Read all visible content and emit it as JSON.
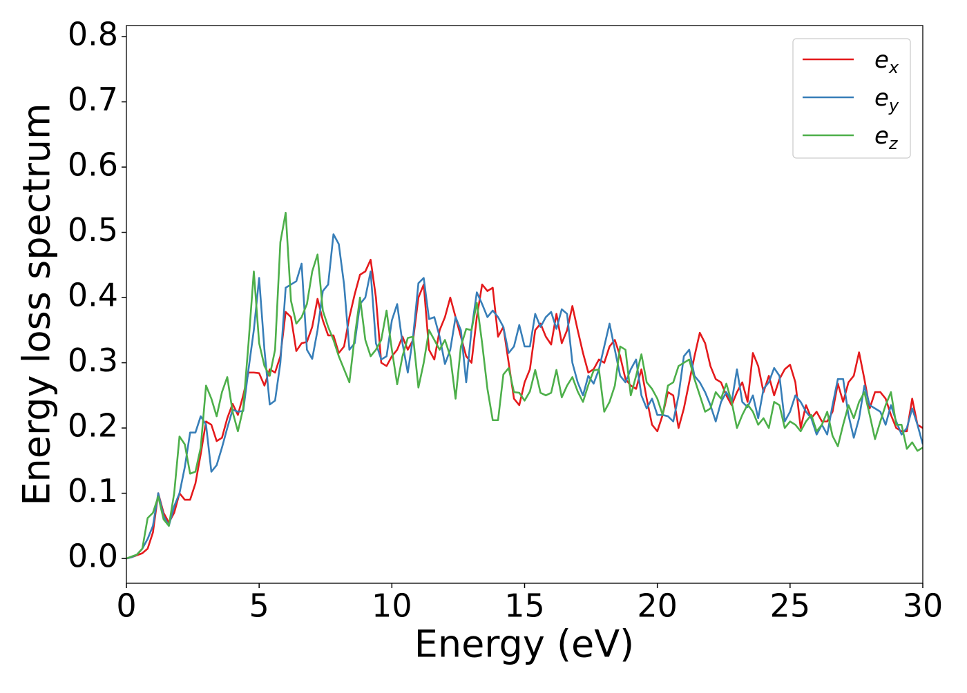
{
  "chart_data": {
    "type": "line",
    "xlabel": "Energy (eV)",
    "ylabel": "Energy loss spectrum",
    "xlim": [
      0,
      30
    ],
    "ylim": [
      -0.038,
      0.817
    ],
    "xticks": [
      0,
      5,
      10,
      15,
      20,
      25,
      30
    ],
    "yticks": [
      {
        "value": 0,
        "label": "0.0"
      },
      0.1,
      0.2,
      0.3,
      0.4,
      0.5,
      0.6,
      0.7,
      0.8
    ],
    "legend": "upper right",
    "x": [
      0,
      0.2,
      0.4,
      0.6,
      0.8,
      1.0,
      1.2,
      1.4,
      1.6,
      1.8,
      2.0,
      2.2,
      2.4,
      2.6,
      2.8,
      3.0,
      3.2,
      3.4,
      3.6,
      3.8,
      4.0,
      4.2,
      4.4,
      4.6,
      4.8,
      5.0,
      5.2,
      5.4,
      5.6,
      5.8,
      6.0,
      6.2,
      6.4,
      6.6,
      6.8,
      7.0,
      7.2,
      7.4,
      7.6,
      7.8,
      8.0,
      8.2,
      8.4,
      8.6,
      8.8,
      9.0,
      9.2,
      9.4,
      9.6,
      9.8,
      10.0,
      10.2,
      10.4,
      10.6,
      10.8,
      11.0,
      11.2,
      11.4,
      11.6,
      11.8,
      12.0,
      12.2,
      12.4,
      12.6,
      12.8,
      13.0,
      13.2,
      13.4,
      13.6,
      13.8,
      14.0,
      14.2,
      14.4,
      14.6,
      14.8,
      15.0,
      15.2,
      15.4,
      15.6,
      15.8,
      16.0,
      16.2,
      16.4,
      16.6,
      16.8,
      17.0,
      17.2,
      17.4,
      17.6,
      17.8,
      18.0,
      18.2,
      18.4,
      18.6,
      18.8,
      19.0,
      19.2,
      19.4,
      19.6,
      19.8,
      20.0,
      20.2,
      20.4,
      20.6,
      20.8,
      21.0,
      21.2,
      21.4,
      21.6,
      21.8,
      22.0,
      22.2,
      22.4,
      22.6,
      22.8,
      23.0,
      23.2,
      23.4,
      23.6,
      23.8,
      24.0,
      24.2,
      24.4,
      24.6,
      24.8,
      25.0,
      25.2,
      25.4,
      25.6,
      25.8,
      26.0,
      26.2,
      26.4,
      26.6,
      26.8,
      27.0,
      27.2,
      27.4,
      27.6,
      27.8,
      28.0,
      28.2,
      28.4,
      28.6,
      28.8,
      29.0,
      29.2,
      29.4,
      29.6,
      29.8,
      30.0
    ],
    "series": [
      {
        "name": "ex",
        "color": "#e41a1c",
        "values": [
          0,
          0.002,
          0.005,
          0.008,
          0.015,
          0.04,
          0.1,
          0.07,
          0.055,
          0.07,
          0.1,
          0.09,
          0.09,
          0.115,
          0.16,
          0.21,
          0.205,
          0.18,
          0.185,
          0.215,
          0.237,
          0.22,
          0.25,
          0.285,
          0.285,
          0.284,
          0.265,
          0.29,
          0.285,
          0.31,
          0.378,
          0.37,
          0.318,
          0.33,
          0.332,
          0.355,
          0.398,
          0.365,
          0.342,
          0.342,
          0.315,
          0.325,
          0.37,
          0.405,
          0.435,
          0.44,
          0.458,
          0.4,
          0.3,
          0.295,
          0.31,
          0.32,
          0.34,
          0.32,
          0.335,
          0.4,
          0.42,
          0.32,
          0.305,
          0.35,
          0.37,
          0.4,
          0.37,
          0.34,
          0.31,
          0.3,
          0.37,
          0.42,
          0.41,
          0.415,
          0.34,
          0.355,
          0.3,
          0.245,
          0.235,
          0.27,
          0.29,
          0.35,
          0.36,
          0.34,
          0.328,
          0.375,
          0.33,
          0.35,
          0.387,
          0.35,
          0.315,
          0.285,
          0.29,
          0.305,
          0.3,
          0.325,
          0.335,
          0.31,
          0.275,
          0.265,
          0.26,
          0.29,
          0.245,
          0.205,
          0.195,
          0.22,
          0.255,
          0.25,
          0.2,
          0.23,
          0.27,
          0.31,
          0.346,
          0.33,
          0.295,
          0.275,
          0.27,
          0.25,
          0.235,
          0.255,
          0.27,
          0.24,
          0.315,
          0.295,
          0.255,
          0.28,
          0.25,
          0.275,
          0.29,
          0.297,
          0.27,
          0.2,
          0.235,
          0.215,
          0.225,
          0.21,
          0.21,
          0.225,
          0.268,
          0.24,
          0.27,
          0.28,
          0.316,
          0.275,
          0.23,
          0.255,
          0.255,
          0.245,
          0.22,
          0.2,
          0.195,
          0.195,
          0.245,
          0.205,
          0.2
        ]
      },
      {
        "name": "ey",
        "color": "#377eb8",
        "values": [
          0,
          0.002,
          0.006,
          0.015,
          0.03,
          0.05,
          0.1,
          0.065,
          0.05,
          0.08,
          0.1,
          0.14,
          0.193,
          0.193,
          0.218,
          0.205,
          0.133,
          0.143,
          0.17,
          0.2,
          0.228,
          0.225,
          0.226,
          0.29,
          0.35,
          0.43,
          0.32,
          0.236,
          0.242,
          0.3,
          0.415,
          0.42,
          0.425,
          0.452,
          0.32,
          0.306,
          0.35,
          0.41,
          0.42,
          0.497,
          0.482,
          0.42,
          0.32,
          0.33,
          0.39,
          0.4,
          0.44,
          0.33,
          0.305,
          0.31,
          0.365,
          0.39,
          0.33,
          0.285,
          0.34,
          0.422,
          0.43,
          0.367,
          0.37,
          0.34,
          0.298,
          0.32,
          0.37,
          0.35,
          0.27,
          0.35,
          0.408,
          0.39,
          0.37,
          0.38,
          0.37,
          0.355,
          0.315,
          0.325,
          0.358,
          0.325,
          0.325,
          0.375,
          0.355,
          0.37,
          0.378,
          0.352,
          0.382,
          0.375,
          0.3,
          0.27,
          0.25,
          0.28,
          0.268,
          0.29,
          0.325,
          0.36,
          0.32,
          0.28,
          0.27,
          0.29,
          0.305,
          0.25,
          0.23,
          0.245,
          0.22,
          0.22,
          0.218,
          0.21,
          0.25,
          0.31,
          0.32,
          0.28,
          0.27,
          0.255,
          0.235,
          0.21,
          0.24,
          0.255,
          0.24,
          0.29,
          0.24,
          0.232,
          0.25,
          0.215,
          0.26,
          0.27,
          0.292,
          0.28,
          0.21,
          0.225,
          0.25,
          0.24,
          0.225,
          0.215,
          0.19,
          0.205,
          0.19,
          0.235,
          0.275,
          0.275,
          0.22,
          0.185,
          0.215,
          0.265,
          0.235,
          0.23,
          0.225,
          0.205,
          0.235,
          0.21,
          0.19,
          0.2,
          0.23,
          0.205,
          0.175
        ]
      },
      {
        "name": "ez",
        "color": "#4daf4a",
        "values": [
          0,
          0.003,
          0.006,
          0.015,
          0.062,
          0.07,
          0.095,
          0.06,
          0.05,
          0.1,
          0.187,
          0.175,
          0.13,
          0.133,
          0.17,
          0.265,
          0.245,
          0.218,
          0.255,
          0.278,
          0.225,
          0.195,
          0.23,
          0.33,
          0.44,
          0.33,
          0.295,
          0.28,
          0.32,
          0.485,
          0.53,
          0.395,
          0.36,
          0.37,
          0.39,
          0.44,
          0.466,
          0.38,
          0.355,
          0.335,
          0.31,
          0.29,
          0.27,
          0.34,
          0.4,
          0.335,
          0.31,
          0.32,
          0.335,
          0.38,
          0.32,
          0.267,
          0.31,
          0.338,
          0.34,
          0.262,
          0.3,
          0.35,
          0.335,
          0.32,
          0.335,
          0.31,
          0.245,
          0.325,
          0.352,
          0.35,
          0.392,
          0.33,
          0.26,
          0.212,
          0.212,
          0.282,
          0.292,
          0.255,
          0.254,
          0.242,
          0.256,
          0.289,
          0.254,
          0.25,
          0.254,
          0.289,
          0.247,
          0.265,
          0.278,
          0.256,
          0.24,
          0.266,
          0.288,
          0.29,
          0.225,
          0.24,
          0.265,
          0.325,
          0.32,
          0.25,
          0.28,
          0.313,
          0.27,
          0.26,
          0.245,
          0.22,
          0.265,
          0.27,
          0.295,
          0.3,
          0.305,
          0.275,
          0.25,
          0.225,
          0.23,
          0.255,
          0.245,
          0.268,
          0.24,
          0.2,
          0.22,
          0.236,
          0.225,
          0.205,
          0.215,
          0.2,
          0.24,
          0.235,
          0.2,
          0.21,
          0.205,
          0.195,
          0.21,
          0.22,
          0.195,
          0.205,
          0.225,
          0.188,
          0.172,
          0.205,
          0.235,
          0.215,
          0.24,
          0.255,
          0.22,
          0.183,
          0.21,
          0.235,
          0.255,
          0.205,
          0.205,
          0.168,
          0.178,
          0.165,
          0.17
        ]
      }
    ]
  }
}
